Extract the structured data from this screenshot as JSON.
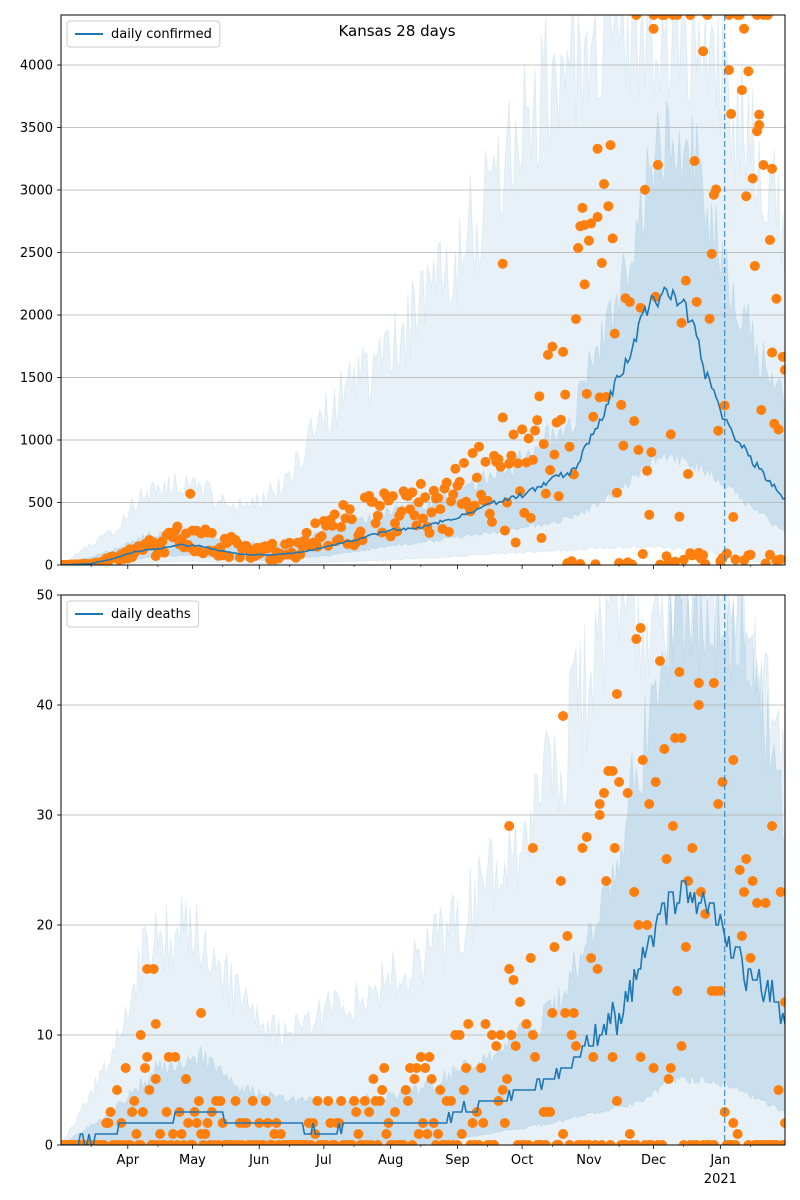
{
  "chart_data": [
    {
      "type": "line",
      "title": "Kansas 28 days",
      "series_name": "daily confirmed",
      "x_range": [
        "2020-03-01",
        "2021-01-31"
      ],
      "ylim": [
        0,
        4400
      ],
      "yticks": [
        0,
        500,
        1000,
        1500,
        2000,
        2500,
        3000,
        3500,
        4000
      ],
      "grid": "horizontal",
      "legend": "top-left",
      "forecast_start": "2021-01-03",
      "colors": {
        "line": "#1f77b4",
        "points": "#ff7f0e",
        "band": "#1f77b4"
      },
      "median_knots": [
        [
          "2020-03-01",
          0
        ],
        [
          "2020-03-15",
          10
        ],
        [
          "2020-03-25",
          50
        ],
        [
          "2020-04-05",
          110
        ],
        [
          "2020-04-15",
          130
        ],
        [
          "2020-04-25",
          160
        ],
        [
          "2020-05-05",
          150
        ],
        [
          "2020-05-15",
          110
        ],
        [
          "2020-05-25",
          85
        ],
        [
          "2020-06-05",
          80
        ],
        [
          "2020-06-20",
          100
        ],
        [
          "2020-07-01",
          140
        ],
        [
          "2020-07-15",
          200
        ],
        [
          "2020-08-01",
          280
        ],
        [
          "2020-08-15",
          300
        ],
        [
          "2020-09-01",
          380
        ],
        [
          "2020-09-15",
          480
        ],
        [
          "2020-10-01",
          560
        ],
        [
          "2020-10-15",
          680
        ],
        [
          "2020-10-25",
          760
        ],
        [
          "2020-11-01",
          980
        ],
        [
          "2020-11-10",
          1300
        ],
        [
          "2020-11-20",
          1700
        ],
        [
          "2020-11-28",
          2050
        ],
        [
          "2020-12-05",
          2150
        ],
        [
          "2020-12-12",
          2100
        ],
        [
          "2020-12-18",
          2000
        ],
        [
          "2020-12-25",
          1550
        ],
        [
          "2021-01-03",
          1150
        ],
        [
          "2021-01-15",
          850
        ],
        [
          "2021-01-31",
          520
        ]
      ],
      "inner_band_knots": [
        [
          "2020-03-01",
          0,
          0
        ],
        [
          "2020-03-25",
          20,
          120
        ],
        [
          "2020-04-10",
          60,
          240
        ],
        [
          "2020-05-01",
          80,
          260
        ],
        [
          "2020-05-20",
          40,
          180
        ],
        [
          "2020-06-10",
          40,
          170
        ],
        [
          "2020-07-01",
          70,
          260
        ],
        [
          "2020-08-01",
          150,
          420
        ],
        [
          "2020-09-01",
          220,
          560
        ],
        [
          "2020-10-01",
          300,
          850
        ],
        [
          "2020-10-25",
          380,
          1200
        ],
        [
          "2020-11-15",
          600,
          2200
        ],
        [
          "2020-12-05",
          900,
          3500
        ],
        [
          "2020-12-20",
          800,
          3300
        ],
        [
          "2021-01-03",
          650,
          2300
        ],
        [
          "2021-01-31",
          250,
          1250
        ]
      ],
      "outer_band_knots": [
        [
          "2020-03-01",
          0,
          0
        ],
        [
          "2020-03-25",
          5,
          280
        ],
        [
          "2020-04-10",
          20,
          600
        ],
        [
          "2020-05-01",
          30,
          650
        ],
        [
          "2020-05-20",
          15,
          450
        ],
        [
          "2020-06-10",
          10,
          600
        ],
        [
          "2020-07-01",
          20,
          1200
        ],
        [
          "2020-08-01",
          40,
          1700
        ],
        [
          "2020-09-01",
          70,
          2500
        ],
        [
          "2020-09-20",
          90,
          3000
        ],
        [
          "2020-10-10",
          110,
          3800
        ],
        [
          "2020-11-01",
          130,
          4400
        ],
        [
          "2020-12-01",
          150,
          4400
        ],
        [
          "2020-12-25",
          120,
          4400
        ],
        [
          "2021-01-10",
          30,
          3500
        ],
        [
          "2021-01-31",
          10,
          2700
        ]
      ],
      "observed_knots": [
        [
          "2020-03-01",
          0,
          0
        ],
        [
          "2020-03-15",
          10,
          0.3
        ],
        [
          "2020-03-25",
          50,
          0.5
        ],
        [
          "2020-04-10",
          130,
          0.5
        ],
        [
          "2020-04-25",
          200,
          0.6
        ],
        [
          "2020-05-10",
          180,
          0.6
        ],
        [
          "2020-06-01",
          100,
          0.6
        ],
        [
          "2020-06-20",
          130,
          0.6
        ],
        [
          "2020-07-05",
          300,
          0.6
        ],
        [
          "2020-08-01",
          400,
          0.5
        ],
        [
          "2020-09-01",
          550,
          0.5
        ],
        [
          "2020-10-01",
          800,
          0.8
        ],
        [
          "2020-10-20",
          1200,
          0.8
        ],
        [
          "2020-11-10",
          2200,
          0.9
        ],
        [
          "2020-12-01",
          3200,
          0.9
        ],
        [
          "2020-12-15",
          3800,
          0.9
        ],
        [
          "2021-01-03",
          3500,
          0.9
        ],
        [
          "2021-01-31",
          2500,
          0.9
        ]
      ],
      "spikes": [
        [
          "2020-04-30",
          570
        ],
        [
          "2020-09-22",
          2410
        ],
        [
          "2020-11-05",
          3330
        ],
        [
          "2020-10-30",
          2720
        ],
        [
          "2020-10-28",
          2710
        ],
        [
          "2020-12-01",
          4290
        ],
        [
          "2020-12-18",
          4420
        ],
        [
          "2020-12-24",
          4110
        ],
        [
          "2021-01-05",
          3960
        ],
        [
          "2021-01-12",
          4290
        ],
        [
          "2021-01-14",
          3950
        ],
        [
          "2021-01-18",
          3470
        ],
        [
          "2021-01-19",
          3520
        ],
        [
          "2021-01-21",
          3200
        ],
        [
          "2021-01-24",
          2600
        ],
        [
          "2021-01-25",
          3170
        ],
        [
          "2021-01-27",
          2130
        ]
      ]
    },
    {
      "type": "line",
      "series_name": "daily deaths",
      "x_range": [
        "2020-03-01",
        "2021-01-31"
      ],
      "ylim": [
        0,
        50
      ],
      "yticks": [
        0,
        10,
        20,
        30,
        40,
        50
      ],
      "xticks": [
        {
          "date": "2020-04-01",
          "label": "Apr"
        },
        {
          "date": "2020-05-01",
          "label": "May"
        },
        {
          "date": "2020-06-01",
          "label": "Jun"
        },
        {
          "date": "2020-07-01",
          "label": "Jul"
        },
        {
          "date": "2020-08-01",
          "label": "Aug"
        },
        {
          "date": "2020-09-01",
          "label": "Sep"
        },
        {
          "date": "2020-10-01",
          "label": "Oct"
        },
        {
          "date": "2020-11-01",
          "label": "Nov"
        },
        {
          "date": "2020-12-01",
          "label": "Dec"
        },
        {
          "date": "2021-01-01",
          "label": "Jan"
        }
      ],
      "xtick_year": {
        "date": "2021-01-01",
        "label": "2021"
      },
      "grid": "horizontal",
      "legend": "top-left",
      "forecast_start": "2021-01-03",
      "colors": {
        "line": "#1f77b4",
        "points": "#ff7f0e",
        "band": "#1f77b4"
      },
      "median_knots": [
        [
          "2020-03-01",
          0
        ],
        [
          "2020-03-25",
          1
        ],
        [
          "2020-04-01",
          2
        ],
        [
          "2020-04-20",
          2
        ],
        [
          "2020-04-25",
          3
        ],
        [
          "2020-05-10",
          3
        ],
        [
          "2020-05-20",
          2
        ],
        [
          "2020-06-15",
          2
        ],
        [
          "2020-07-01",
          1
        ],
        [
          "2020-07-15",
          2
        ],
        [
          "2020-08-01",
          2
        ],
        [
          "2020-08-25",
          2
        ],
        [
          "2020-09-01",
          3
        ],
        [
          "2020-09-15",
          4
        ],
        [
          "2020-10-01",
          5
        ],
        [
          "2020-10-15",
          6
        ],
        [
          "2020-11-01",
          9
        ],
        [
          "2020-11-15",
          12
        ],
        [
          "2020-11-25",
          16
        ],
        [
          "2020-12-05",
          21
        ],
        [
          "2020-12-15",
          23
        ],
        [
          "2020-12-25",
          22
        ],
        [
          "2021-01-03",
          19
        ],
        [
          "2021-01-12",
          16
        ],
        [
          "2021-01-22",
          14
        ],
        [
          "2021-01-31",
          12
        ]
      ],
      "inner_band_knots": [
        [
          "2020-03-01",
          0,
          0
        ],
        [
          "2020-03-25",
          0,
          3
        ],
        [
          "2020-04-15",
          0,
          7
        ],
        [
          "2020-05-05",
          0,
          8
        ],
        [
          "2020-05-25",
          0,
          5
        ],
        [
          "2020-06-20",
          0,
          4
        ],
        [
          "2020-07-15",
          0,
          4
        ],
        [
          "2020-08-15",
          0,
          5
        ],
        [
          "2020-09-15",
          1,
          8
        ],
        [
          "2020-10-15",
          2,
          12
        ],
        [
          "2020-11-05",
          3,
          20
        ],
        [
          "2020-11-25",
          4,
          35
        ],
        [
          "2020-12-10",
          6,
          50
        ],
        [
          "2020-12-25",
          6,
          50
        ],
        [
          "2021-01-10",
          5,
          50
        ],
        [
          "2021-01-31",
          3,
          30
        ]
      ],
      "outer_band_knots": [
        [
          "2020-03-01",
          0,
          0
        ],
        [
          "2020-03-25",
          0,
          8
        ],
        [
          "2020-04-10",
          0,
          18
        ],
        [
          "2020-05-01",
          0,
          20
        ],
        [
          "2020-05-20",
          0,
          14
        ],
        [
          "2020-06-10",
          0,
          10
        ],
        [
          "2020-07-01",
          0,
          12
        ],
        [
          "2020-08-01",
          0,
          15
        ],
        [
          "2020-09-01",
          0,
          20
        ],
        [
          "2020-10-01",
          0,
          28
        ],
        [
          "2020-10-25",
          0,
          38
        ],
        [
          "2020-11-10",
          0,
          50
        ],
        [
          "2020-12-15",
          0,
          50
        ],
        [
          "2021-01-10",
          0,
          50
        ],
        [
          "2021-01-31",
          0,
          35
        ]
      ],
      "observed_knots": [
        [
          "2020-03-01",
          0,
          0
        ],
        [
          "2020-03-20",
          1,
          1
        ],
        [
          "2020-04-05",
          5,
          1.2
        ],
        [
          "2020-04-25",
          4,
          1
        ],
        [
          "2020-05-10",
          3,
          1
        ],
        [
          "2020-06-01",
          2,
          1
        ],
        [
          "2020-07-01",
          2,
          1
        ],
        [
          "2020-08-01",
          4,
          1
        ],
        [
          "2020-09-01",
          5,
          1.2
        ],
        [
          "2020-10-01",
          8,
          1.2
        ],
        [
          "2020-10-25",
          12,
          1.3
        ],
        [
          "2020-11-15",
          18,
          1.4
        ],
        [
          "2020-12-10",
          20,
          1.4
        ],
        [
          "2021-01-03",
          15,
          1.4
        ],
        [
          "2021-01-31",
          10,
          1.4
        ]
      ],
      "spikes": [
        [
          "2020-04-10",
          16
        ],
        [
          "2020-04-13",
          16
        ],
        [
          "2020-04-14",
          11
        ],
        [
          "2020-04-07",
          10
        ],
        [
          "2020-05-05",
          12
        ],
        [
          "2020-09-25",
          29
        ],
        [
          "2020-10-06",
          27
        ],
        [
          "2020-10-20",
          39
        ],
        [
          "2020-11-06",
          30
        ],
        [
          "2020-11-12",
          34
        ],
        [
          "2020-11-14",
          41
        ],
        [
          "2020-11-23",
          46
        ],
        [
          "2020-11-25",
          47
        ],
        [
          "2020-11-29",
          31
        ],
        [
          "2020-12-14",
          37
        ],
        [
          "2020-12-22",
          42
        ],
        [
          "2020-12-29",
          42
        ],
        [
          "2021-01-07",
          35
        ],
        [
          "2021-01-18",
          22
        ],
        [
          "2021-01-22",
          22
        ],
        [
          "2021-01-25",
          29
        ],
        [
          "2021-01-31",
          2
        ]
      ]
    }
  ]
}
